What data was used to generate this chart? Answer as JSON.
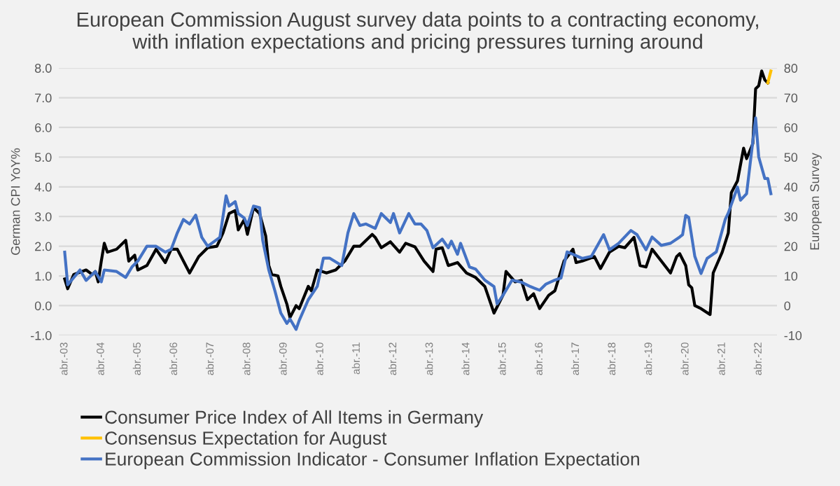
{
  "chart_data": {
    "type": "line",
    "title": "European Commission August survey data points to a contracting economy,\nwith inflation expectations and pricing pressures turning around",
    "ylabel": "German CPI YoY%",
    "y2label": "European Survey",
    "xlim": [
      "2003-02",
      "2022-10"
    ],
    "xticks": [
      {
        "value": "2003-04",
        "label": "abr.-03"
      },
      {
        "value": "2004-04",
        "label": "abr.-04"
      },
      {
        "value": "2005-04",
        "label": "abr.-05"
      },
      {
        "value": "2006-04",
        "label": "abr.-06"
      },
      {
        "value": "2007-04",
        "label": "abr.-07"
      },
      {
        "value": "2008-04",
        "label": "abr.-08"
      },
      {
        "value": "2009-04",
        "label": "abr.-09"
      },
      {
        "value": "2010-04",
        "label": "abr.-10"
      },
      {
        "value": "2011-04",
        "label": "abr.-11"
      },
      {
        "value": "2012-04",
        "label": "abr.-12"
      },
      {
        "value": "2013-04",
        "label": "abr.-13"
      },
      {
        "value": "2014-04",
        "label": "abr.-14"
      },
      {
        "value": "2015-04",
        "label": "abr.-15"
      },
      {
        "value": "2016-04",
        "label": "abr.-16"
      },
      {
        "value": "2017-04",
        "label": "abr.-17"
      },
      {
        "value": "2018-04",
        "label": "abr.-18"
      },
      {
        "value": "2019-04",
        "label": "abr.-19"
      },
      {
        "value": "2020-04",
        "label": "abr.-20"
      },
      {
        "value": "2021-04",
        "label": "abr.-21"
      },
      {
        "value": "2022-04",
        "label": "abr.-22"
      }
    ],
    "ylim": [
      -1,
      8
    ],
    "yticks": [
      {
        "value": -1,
        "label": "-1.0"
      },
      {
        "value": 0,
        "label": "0.0"
      },
      {
        "value": 1,
        "label": "1.0"
      },
      {
        "value": 2,
        "label": "2.0"
      },
      {
        "value": 3,
        "label": "3.0"
      },
      {
        "value": 4,
        "label": "4.0"
      },
      {
        "value": 5,
        "label": "5.0"
      },
      {
        "value": 6,
        "label": "6.0"
      },
      {
        "value": 7,
        "label": "7.0"
      },
      {
        "value": 8,
        "label": "8.0"
      }
    ],
    "y2lim": [
      -10,
      80
    ],
    "y2ticks": [
      -10,
      0,
      10,
      20,
      30,
      40,
      50,
      60,
      70,
      80
    ],
    "grid": "y",
    "legend": "bottom",
    "series": [
      {
        "name": "Consumer Price Index of All Items in Germany",
        "color": "#000000",
        "x": [
          "2003-04",
          "2003-05",
          "2003-07",
          "2003-11",
          "2004-01",
          "2004-02",
          "2004-03",
          "2004-04",
          "2004-05",
          "2004-06",
          "2004-09",
          "2004-12",
          "2005-01",
          "2005-03",
          "2005-04",
          "2005-07",
          "2005-10",
          "2006-01",
          "2006-03",
          "2006-05",
          "2006-08",
          "2006-09",
          "2006-12",
          "2007-03",
          "2007-06",
          "2007-08",
          "2007-10",
          "2007-12",
          "2008-01",
          "2008-03",
          "2008-04",
          "2008-06",
          "2008-08",
          "2008-10",
          "2008-11",
          "2008-12",
          "2009-02",
          "2009-03",
          "2009-05",
          "2009-06",
          "2009-08",
          "2009-09",
          "2009-12",
          "2010-01",
          "2010-03",
          "2010-06",
          "2010-09",
          "2010-12",
          "2011-03",
          "2011-05",
          "2011-09",
          "2011-10",
          "2011-12",
          "2012-03",
          "2012-06",
          "2012-08",
          "2012-11",
          "2013-02",
          "2013-05",
          "2013-06",
          "2013-08",
          "2013-10",
          "2014-01",
          "2014-04",
          "2014-07",
          "2014-10",
          "2015-01",
          "2015-04",
          "2015-05",
          "2015-08",
          "2015-10",
          "2015-12",
          "2016-02",
          "2016-04",
          "2016-07",
          "2016-09",
          "2016-12",
          "2017-03",
          "2017-04",
          "2017-06",
          "2017-10",
          "2017-12",
          "2018-03",
          "2018-06",
          "2018-08",
          "2018-11",
          "2019-01",
          "2019-03",
          "2019-05",
          "2019-08",
          "2019-11",
          "2020-01",
          "2020-02",
          "2020-04",
          "2020-05",
          "2020-06",
          "2020-07",
          "2020-09",
          "2020-12",
          "2021-01",
          "2021-04",
          "2021-06",
          "2021-07",
          "2021-09",
          "2021-11",
          "2021-12",
          "2022-02",
          "2022-03",
          "2022-04",
          "2022-05",
          "2022-06",
          "2022-07"
        ],
        "values": [
          0.9,
          0.57,
          1.05,
          1.2,
          1.05,
          1.15,
          0.8,
          1.5,
          2.1,
          1.8,
          1.9,
          2.2,
          1.5,
          1.7,
          1.2,
          1.35,
          1.9,
          1.45,
          1.9,
          1.9,
          1.3,
          1.1,
          1.65,
          1.95,
          2.0,
          2.45,
          3.1,
          3.2,
          2.55,
          2.9,
          2.4,
          3.3,
          3.1,
          2.35,
          1.35,
          1.05,
          1.0,
          0.65,
          0.05,
          -0.4,
          0.0,
          -0.1,
          0.65,
          0.5,
          1.2,
          1.1,
          1.2,
          1.5,
          2.0,
          2.0,
          2.4,
          2.3,
          1.95,
          2.15,
          1.8,
          2.1,
          1.98,
          1.5,
          1.15,
          1.9,
          1.95,
          1.35,
          1.45,
          1.1,
          0.95,
          0.65,
          -0.25,
          0.35,
          1.15,
          0.8,
          0.85,
          0.2,
          0.4,
          -0.1,
          0.35,
          0.5,
          1.5,
          1.9,
          1.45,
          1.5,
          1.65,
          1.25,
          1.8,
          2.0,
          1.95,
          2.3,
          1.35,
          1.3,
          1.9,
          1.5,
          1.1,
          1.65,
          1.75,
          1.35,
          0.7,
          0.6,
          0.0,
          -0.1,
          -0.3,
          1.1,
          1.8,
          2.45,
          3.8,
          4.2,
          5.3,
          4.95,
          5.45,
          7.3,
          7.4,
          7.9,
          7.6,
          7.5
        ]
      },
      {
        "name": "Consensus Expectation for August",
        "color": "#ffc000",
        "x": [
          "2022-07",
          "2022-08"
        ],
        "values": [
          7.5,
          7.9
        ]
      },
      {
        "name": "European Commission Indicator - Consumer Inflation Expectation",
        "color": "#4472c4",
        "axis": "y2",
        "x": [
          "2003-04",
          "2003-05",
          "2003-09",
          "2003-11",
          "2004-02",
          "2004-04",
          "2004-05",
          "2004-09",
          "2004-12",
          "2005-02",
          "2005-04",
          "2005-07",
          "2005-10",
          "2006-01",
          "2006-03",
          "2006-05",
          "2006-07",
          "2006-09",
          "2006-11",
          "2007-01",
          "2007-03",
          "2007-07",
          "2007-09",
          "2007-10",
          "2007-12",
          "2008-01",
          "2008-03",
          "2008-04",
          "2008-06",
          "2008-08",
          "2008-09",
          "2008-11",
          "2009-01",
          "2009-03",
          "2009-05",
          "2009-06",
          "2009-08",
          "2009-09",
          "2009-12",
          "2010-03",
          "2010-05",
          "2010-07",
          "2010-11",
          "2011-01",
          "2011-03",
          "2011-05",
          "2011-07",
          "2011-10",
          "2011-12",
          "2012-03",
          "2012-04",
          "2012-06",
          "2012-09",
          "2012-11",
          "2013-01",
          "2013-03",
          "2013-05",
          "2013-08",
          "2013-10",
          "2013-11",
          "2014-01",
          "2014-02",
          "2014-05",
          "2014-07",
          "2014-10",
          "2015-01",
          "2015-02",
          "2015-04",
          "2015-07",
          "2015-10",
          "2016-01",
          "2016-04",
          "2016-06",
          "2016-09",
          "2016-11",
          "2017-01",
          "2017-03",
          "2017-06",
          "2017-09",
          "2018-01",
          "2018-03",
          "2018-06",
          "2018-10",
          "2018-12",
          "2019-03",
          "2019-05",
          "2019-08",
          "2019-11",
          "2020-02",
          "2020-03",
          "2020-04",
          "2020-05",
          "2020-07",
          "2020-09",
          "2020-11",
          "2021-02",
          "2021-05",
          "2021-06",
          "2021-09",
          "2021-10",
          "2021-12",
          "2022-03",
          "2022-04",
          "2022-06",
          "2022-07",
          "2022-08"
        ],
        "values": [
          18,
          7,
          12,
          8.5,
          11.5,
          8,
          12,
          11.5,
          9.5,
          13,
          15,
          20,
          20,
          18,
          19,
          24.5,
          29,
          27.5,
          30.5,
          23,
          20,
          23,
          37,
          33.5,
          35,
          31,
          29.5,
          27,
          33.5,
          33,
          22,
          12,
          5,
          -2.5,
          -6,
          -4.5,
          -8,
          -5,
          2,
          6.5,
          16,
          16,
          13.5,
          24.5,
          31,
          27,
          27.5,
          26,
          31,
          28,
          31,
          24.5,
          31,
          27.5,
          27.5,
          25.3,
          19.5,
          22.4,
          19.5,
          21.7,
          17.3,
          21,
          13,
          12.3,
          8.6,
          6.4,
          0.6,
          3.5,
          8.6,
          7.9,
          6.4,
          5.2,
          7.2,
          8.6,
          9.3,
          18.1,
          17.3,
          15.9,
          16.6,
          23.9,
          18.8,
          21,
          25.3,
          23.9,
          18.8,
          23.1,
          20.3,
          21,
          23.1,
          23.9,
          30.4,
          29.7,
          16.6,
          10.8,
          15.9,
          18.1,
          29,
          31.2,
          39.9,
          35.5,
          37.7,
          63.2,
          50.1,
          42.8,
          42.8,
          37.7
        ]
      }
    ]
  }
}
